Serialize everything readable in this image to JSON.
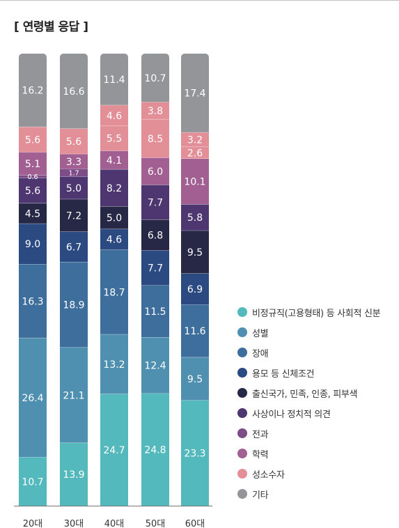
{
  "header": {
    "title": "[ 연령별 응답 ]"
  },
  "chart_data": {
    "type": "bar",
    "stacked": true,
    "categories": [
      "20대",
      "30대",
      "40대",
      "50대",
      "60대"
    ],
    "series": [
      {
        "name": "비정규직(고용형태) 등 사회적 신분",
        "color": "#54b9bd",
        "values": [
          10.7,
          13.9,
          24.7,
          24.8,
          23.3
        ]
      },
      {
        "name": "성별",
        "color": "#4f8fb0",
        "values": [
          26.4,
          21.1,
          13.2,
          12.4,
          9.5
        ]
      },
      {
        "name": "장애",
        "color": "#3e6f9c",
        "values": [
          16.3,
          18.9,
          18.7,
          11.5,
          11.6
        ]
      },
      {
        "name": "용모 등 신체조건",
        "color": "#2c4a82",
        "values": [
          9.0,
          6.7,
          4.6,
          7.7,
          6.9
        ]
      },
      {
        "name": "출신국가, 민족, 인종, 피부색",
        "color": "#262846",
        "values": [
          4.5,
          7.2,
          5.0,
          6.8,
          9.5
        ]
      },
      {
        "name": "사상이나 정치적 의견",
        "color": "#4e3670",
        "values": [
          5.6,
          5.0,
          8.2,
          7.7,
          5.8
        ]
      },
      {
        "name": "전과",
        "color": "#7c4d87",
        "values": [
          0.6,
          1.7,
          null,
          null,
          null
        ]
      },
      {
        "name": "학력",
        "color": "#a26092",
        "values": [
          5.1,
          3.3,
          4.1,
          6.0,
          10.1
        ]
      },
      {
        "name": "성소수자",
        "color": "#e28f98",
        "values": [
          5.6,
          5.6,
          5.5,
          8.5,
          2.6
        ]
      },
      {
        "name": "기타",
        "color": "#949599",
        "values": [
          16.2,
          16.6,
          11.4,
          10.7,
          17.4
        ]
      }
    ],
    "extra_values": {
      "40대": 4.6,
      "50대": 3.8,
      "60대": 3.2
    },
    "ylim": [
      0,
      100
    ],
    "legend_position": "right"
  }
}
